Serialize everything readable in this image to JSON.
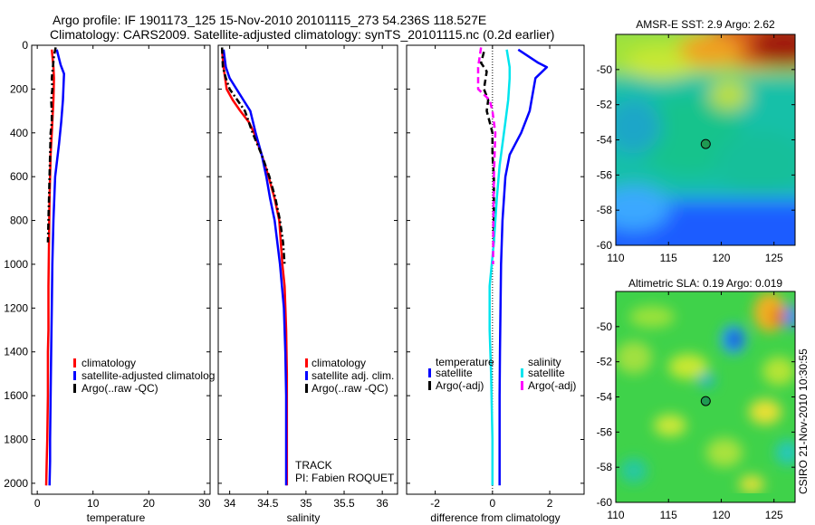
{
  "figure": {
    "title_line1": "Argo profile: IF 1901173_125 15-Nov-2010 20101115_273 54.236S 118.527E",
    "title_line2": "Climatology: CARS2009. Satellite-adjusted climatology: synTS_20101115.nc (0.2d earlier)",
    "footer": "CSIRO 21-Nov-2010 10:30:55"
  },
  "colors": {
    "climatology": "#ff0000",
    "satellite": "#0000ff",
    "argo": "#000000",
    "salinity_satellite": "#00e5ee",
    "salinity_argo": "#ff00ff"
  },
  "chart_data": [
    {
      "type": "line",
      "xlabel": "temperature",
      "ylabel": "",
      "xlim": [
        -1,
        31
      ],
      "ylim": [
        2050,
        0
      ],
      "xticks": [
        0,
        10,
        20,
        30
      ],
      "yticks": [
        0,
        200,
        400,
        600,
        800,
        1000,
        1200,
        1400,
        1600,
        1800,
        2000
      ],
      "legend": {
        "placement": "lower-right",
        "entries": [
          "climatology",
          "satellite-adjusted climatolog",
          "Argo(..raw -QC)"
        ]
      },
      "series": [
        {
          "name": "climatology",
          "color": "#ff0000",
          "style": "solid",
          "x": [
            2.6,
            2.9,
            3.0,
            2.9,
            2.6,
            2.4,
            2.2,
            2.1,
            2.0,
            2.0,
            1.9,
            1.9,
            1.8,
            1.7,
            1.6
          ],
          "y": [
            20,
            100,
            150,
            250,
            400,
            500,
            700,
            900,
            1100,
            1300,
            1400,
            1600,
            1800,
            1900,
            2010
          ]
        },
        {
          "name": "satellite-adjusted climatolog",
          "color": "#0000ff",
          "style": "solid",
          "x": [
            3.5,
            4.2,
            4.8,
            4.6,
            4.3,
            3.9,
            3.2,
            2.9,
            2.7,
            2.6,
            2.5,
            2.4,
            2.3,
            2.3,
            2.2
          ],
          "y": [
            20,
            90,
            130,
            250,
            350,
            450,
            600,
            800,
            1000,
            1200,
            1400,
            1600,
            1800,
            1900,
            2010
          ]
        },
        {
          "name": "Argo(..raw -QC)",
          "color": "#000000",
          "style": "dashdot",
          "x": [
            3.3,
            3.0,
            2.8,
            2.6,
            2.7,
            2.5,
            2.6,
            2.6,
            2.4,
            2.3,
            2.2,
            2.1,
            2.0,
            1.9
          ],
          "y": [
            10,
            50,
            100,
            150,
            200,
            250,
            300,
            350,
            400,
            500,
            600,
            700,
            800,
            900
          ]
        }
      ]
    },
    {
      "type": "line",
      "xlabel": "salinity",
      "ylabel": "",
      "xlim": [
        33.85,
        36.2
      ],
      "ylim": [
        2050,
        0
      ],
      "xticks": [
        34,
        34.5,
        35,
        35.5,
        36
      ],
      "xticklabels": [
        "34",
        "34.5",
        "35",
        "35.5",
        "36"
      ],
      "legend": {
        "placement": "lower-right",
        "entries": [
          "climatology",
          "satellite adj. clim.",
          "Argo(..raw -QC)"
        ]
      },
      "annotations": [
        "TRACK",
        "PI: Fabien ROQUET"
      ],
      "series": [
        {
          "name": "climatology",
          "color": "#ff0000",
          "style": "solid",
          "x": [
            33.9,
            33.92,
            33.96,
            34.04,
            34.14,
            34.25,
            34.32,
            34.42,
            34.51,
            34.59,
            34.65,
            34.69,
            34.72,
            34.74,
            34.75,
            34.75
          ],
          "y": [
            20,
            100,
            200,
            250,
            300,
            350,
            400,
            500,
            600,
            700,
            800,
            1000,
            1100,
            1300,
            1500,
            2010
          ]
        },
        {
          "name": "satellite adj. clim.",
          "color": "#0000ff",
          "style": "solid",
          "x": [
            33.92,
            33.95,
            34.0,
            34.09,
            34.18,
            34.27,
            34.34,
            34.42,
            34.48,
            34.53,
            34.59,
            34.66,
            34.71,
            34.73,
            34.74,
            34.74
          ],
          "y": [
            20,
            100,
            150,
            200,
            250,
            300,
            400,
            500,
            600,
            700,
            800,
            1000,
            1200,
            1400,
            1600,
            2010
          ]
        },
        {
          "name": "Argo(..raw -QC)",
          "color": "#000000",
          "style": "dashdot",
          "x": [
            33.9,
            33.91,
            33.95,
            34.0,
            34.1,
            34.2,
            34.3,
            34.42,
            34.52,
            34.6,
            34.66,
            34.7,
            34.72
          ],
          "y": [
            10,
            100,
            150,
            200,
            250,
            300,
            400,
            500,
            600,
            700,
            800,
            900,
            1000
          ]
        }
      ]
    },
    {
      "type": "line",
      "xlabel": "difference from climatology",
      "ylabel": "",
      "xlim": [
        -3,
        3.2
      ],
      "ylim": [
        2050,
        0
      ],
      "xticks": [
        -2,
        0,
        2
      ],
      "legend": {
        "placement": "lower-right",
        "entries": [
          "temperature",
          "satellite",
          "Argo(-adj)",
          "salinity",
          "satellite",
          "Argo(-adj)"
        ]
      },
      "series": [
        {
          "name": "satellite",
          "group": "temperature",
          "color": "#0000ff",
          "style": "solid",
          "x": [
            0.9,
            1.6,
            1.9,
            1.5,
            1.3,
            1.0,
            0.8,
            0.6,
            0.45,
            0.35,
            0.3,
            0.28,
            0.26,
            0.25,
            0.25
          ],
          "y": [
            20,
            80,
            100,
            150,
            300,
            400,
            450,
            500,
            600,
            800,
            1000,
            1200,
            1400,
            1600,
            2010
          ]
        },
        {
          "name": "Argo(-adj)",
          "group": "temperature",
          "color": "#000000",
          "style": "dashed",
          "x": [
            -0.3,
            -0.4,
            -0.2,
            -0.3,
            -0.15,
            -0.2,
            -0.1,
            0.0,
            0.0,
            0.05,
            0.05,
            0.05,
            0.05
          ],
          "y": [
            30,
            80,
            120,
            200,
            250,
            300,
            350,
            400,
            500,
            600,
            700,
            800,
            900
          ]
        },
        {
          "name": "satellite",
          "group": "salinity",
          "color": "#00e5ee",
          "style": "solid",
          "x": [
            0.5,
            0.6,
            0.6,
            0.55,
            0.45,
            0.35,
            0.25,
            0.15,
            0.05,
            -0.1,
            -0.1,
            -0.05,
            0.0,
            0.0
          ],
          "y": [
            20,
            100,
            150,
            250,
            350,
            450,
            550,
            700,
            900,
            1100,
            1300,
            1500,
            1800,
            2010
          ]
        },
        {
          "name": "Argo(-adj)",
          "group": "salinity",
          "color": "#ff00ff",
          "style": "dashed",
          "x": [
            -0.4,
            -0.5,
            -0.5,
            -0.1,
            0.0,
            0.05,
            0.1,
            0.05,
            0.03,
            0.02
          ],
          "y": [
            10,
            100,
            200,
            250,
            300,
            350,
            400,
            600,
            800,
            1000
          ]
        }
      ]
    },
    {
      "type": "heatmap",
      "title": "AMSR-E SST: 2.9 Argo: 2.62",
      "xlim": [
        110,
        127
      ],
      "ylim": [
        -60,
        -48
      ],
      "xticks": [
        110,
        115,
        120,
        125
      ],
      "yticks": [
        -50,
        -52,
        -54,
        -56,
        -58,
        -60
      ],
      "marker": {
        "lon": 118.527,
        "lat": -54.236
      }
    },
    {
      "type": "heatmap",
      "title": "Altimetric SLA: 0.19 Argo: 0.019",
      "xlim": [
        110,
        127
      ],
      "ylim": [
        -60,
        -48
      ],
      "xticks": [
        110,
        115,
        120,
        125
      ],
      "yticks": [
        -50,
        -52,
        -54,
        -56,
        -58,
        -60
      ],
      "marker": {
        "lon": 118.527,
        "lat": -54.236
      }
    }
  ]
}
